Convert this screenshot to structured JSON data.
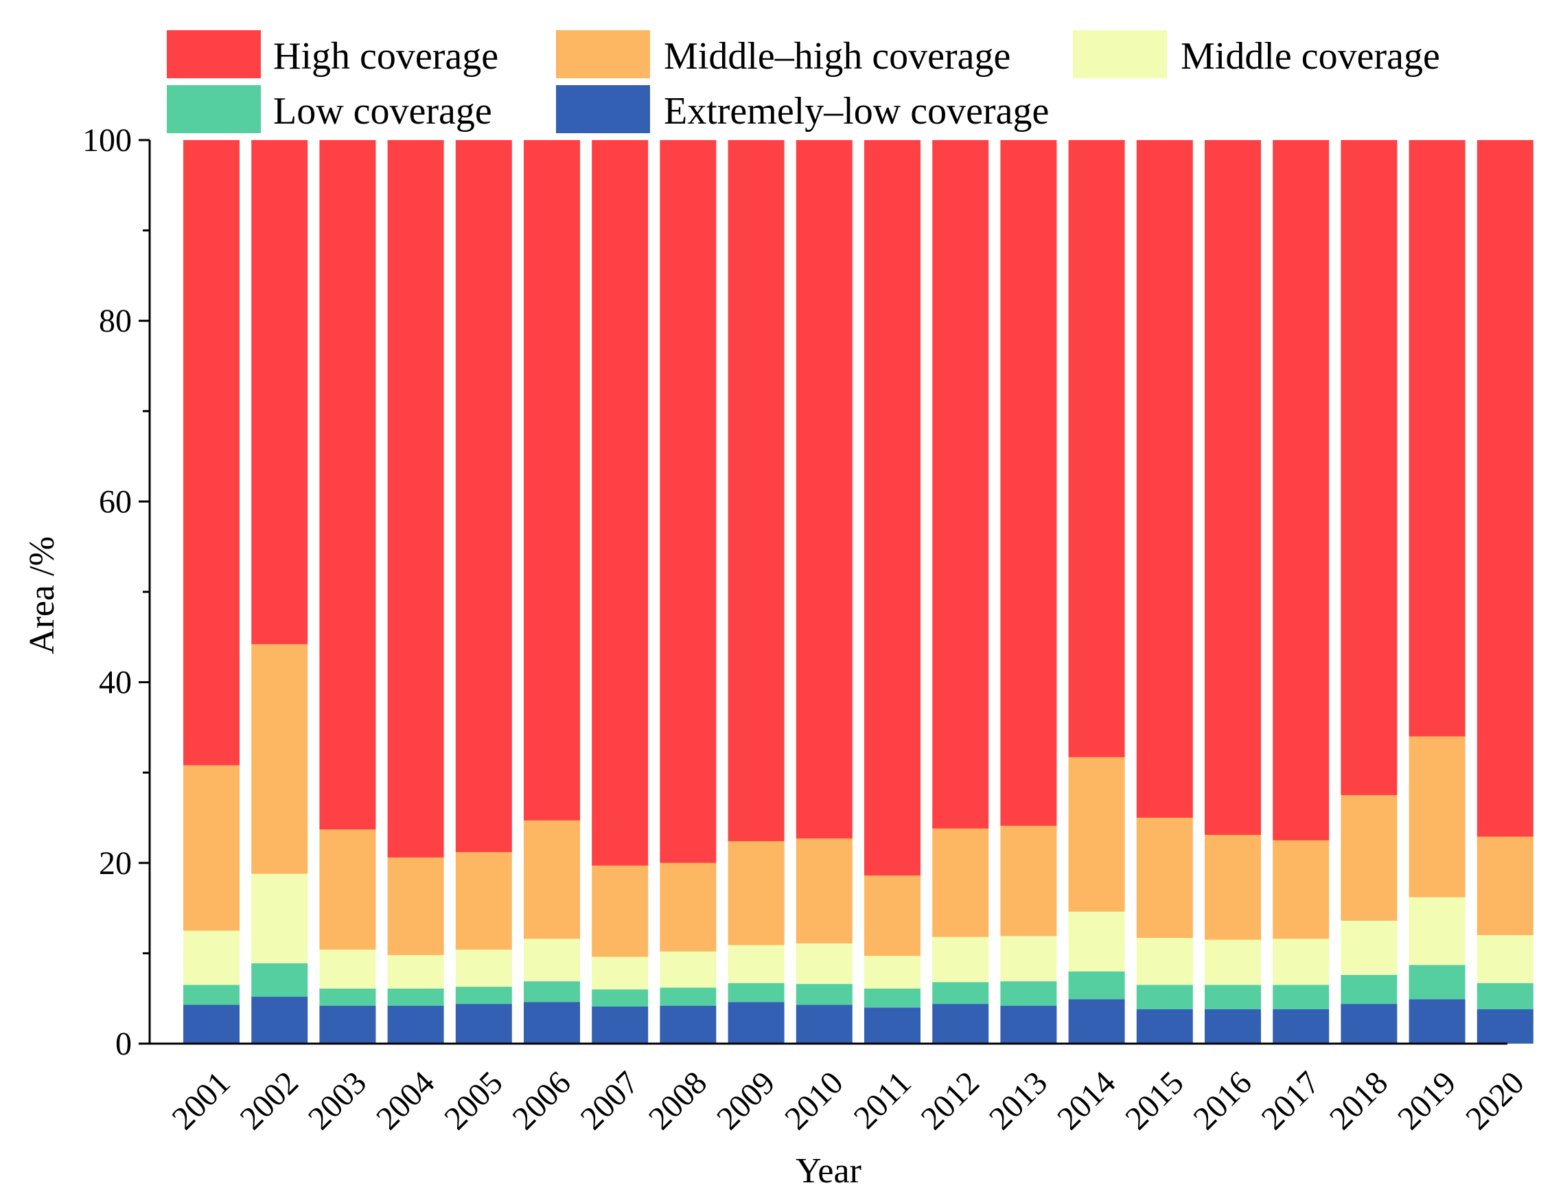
{
  "chart_data": {
    "type": "bar",
    "stacked": true,
    "title": "",
    "xlabel": "Year",
    "ylabel": "Area /%",
    "ylim": [
      0,
      100
    ],
    "yticks": [
      "0",
      "20",
      "40",
      "60",
      "80",
      "100"
    ],
    "legend_position": "top",
    "categories": [
      "2001",
      "2002",
      "2003",
      "2004",
      "2005",
      "2006",
      "2007",
      "2008",
      "2009",
      "2010",
      "2011",
      "2012",
      "2013",
      "2014",
      "2015",
      "2016",
      "2017",
      "2018",
      "2019",
      "2020"
    ],
    "series": [
      {
        "name": "Extremely–low coverage",
        "color": "#3360b3",
        "values": [
          4.3,
          5.2,
          4.2,
          4.2,
          4.4,
          4.6,
          4.1,
          4.2,
          4.6,
          4.3,
          4.0,
          4.4,
          4.2,
          4.9,
          3.8,
          3.8,
          3.8,
          4.4,
          4.9,
          3.8
        ]
      },
      {
        "name": "Low coverage",
        "color": "#55cfa0",
        "values": [
          2.2,
          3.7,
          1.9,
          1.9,
          1.9,
          2.3,
          1.9,
          2.0,
          2.1,
          2.3,
          2.1,
          2.4,
          2.7,
          3.1,
          2.7,
          2.7,
          2.7,
          3.2,
          3.8,
          2.9
        ]
      },
      {
        "name": "Middle coverage",
        "color": "#f2fcb2",
        "values": [
          6.0,
          9.9,
          4.3,
          3.7,
          4.1,
          4.7,
          3.6,
          4.0,
          4.2,
          4.5,
          3.6,
          5.0,
          5.0,
          6.6,
          5.2,
          5.0,
          5.1,
          6.0,
          7.5,
          5.3
        ]
      },
      {
        "name": "Middle–high coverage",
        "color": "#fdb661",
        "values": [
          18.3,
          25.4,
          13.3,
          10.8,
          10.8,
          13.1,
          10.1,
          9.8,
          11.5,
          11.6,
          8.9,
          12.0,
          12.2,
          17.1,
          13.3,
          11.6,
          10.9,
          13.9,
          17.8,
          10.9
        ]
      },
      {
        "name": "High coverage",
        "color": "#fe4144",
        "values": [
          69.2,
          55.8,
          76.3,
          79.4,
          78.8,
          75.3,
          80.3,
          80.0,
          77.6,
          77.3,
          81.4,
          76.2,
          75.9,
          68.3,
          75.0,
          76.9,
          77.5,
          72.5,
          66.0,
          77.1
        ]
      }
    ],
    "legend": [
      {
        "label": "High coverage",
        "color": "#fe4144"
      },
      {
        "label": "Middle–high coverage",
        "color": "#fdb661"
      },
      {
        "label": "Middle coverage",
        "color": "#f2fcb2"
      },
      {
        "label": "Low coverage",
        "color": "#55cfa0"
      },
      {
        "label": "Extremely–low coverage",
        "color": "#3360b3"
      }
    ]
  }
}
